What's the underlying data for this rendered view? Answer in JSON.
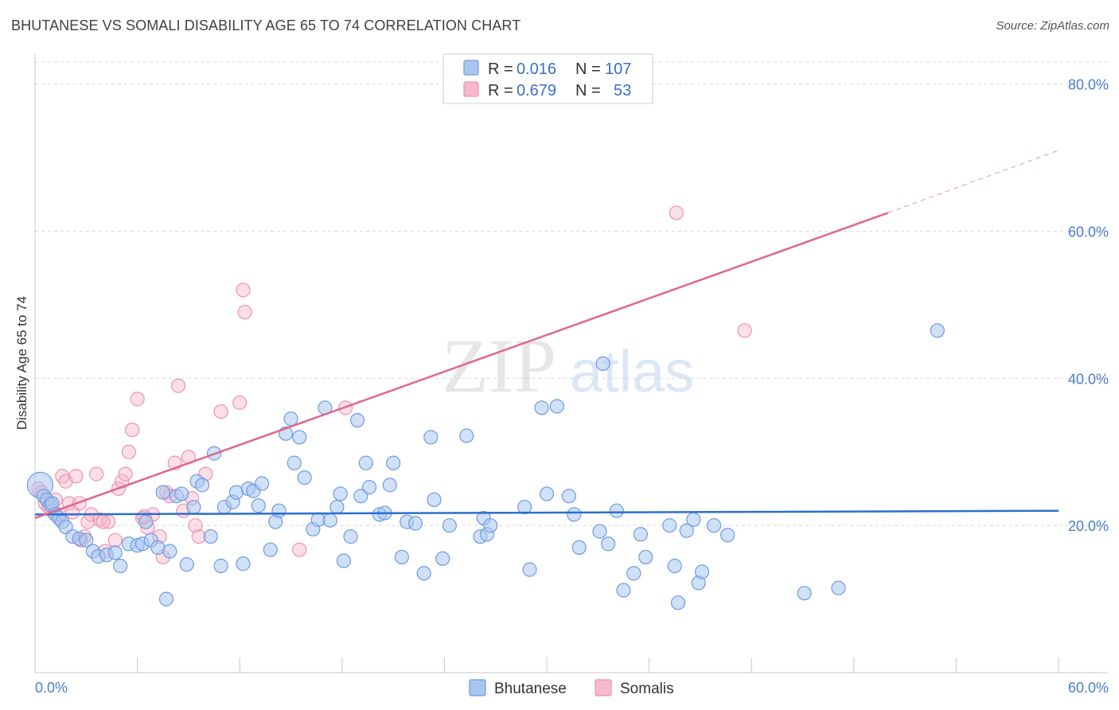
{
  "title": "BHUTANESE VS SOMALI DISABILITY AGE 65 TO 74 CORRELATION CHART",
  "source": "Source: ZipAtlas.com",
  "watermark": {
    "zip": "ZIP",
    "atlas": "atlas"
  },
  "colors": {
    "bhutanese_fill": "#a9c6f0",
    "bhutanese_stroke": "#6f9be0",
    "bhutanese_line": "#2a6fd0",
    "somalis_fill": "#f6b9cb",
    "somalis_stroke": "#ec93b0",
    "somalis_line": "#e0668f",
    "grid": "#d9d9d9",
    "tick_text": "#4a7dcc"
  },
  "legend": {
    "rows": [
      {
        "r_label": "R =",
        "r_value": "0.016",
        "n_label": "N =",
        "n_value": "107",
        "series": "Bhutanese"
      },
      {
        "r_label": "R =",
        "r_value": "0.679",
        "n_label": "N =",
        "n_value": "53",
        "series": "Somalis"
      }
    ]
  },
  "chart_data": {
    "type": "scatter",
    "title": "BHUTANESE VS SOMALI DISABILITY AGE 65 TO 74 CORRELATION CHART",
    "xlabel": "",
    "ylabel": "Disability Age 65 to 74",
    "xlim": [
      0,
      60
    ],
    "ylim": [
      0,
      83
    ],
    "x_tick_labels": [
      "0.0%",
      "60.0%"
    ],
    "y_ticks": [
      20,
      40,
      60,
      80
    ],
    "y_tick_labels": [
      "20.0%",
      "40.0%",
      "60.0%",
      "80.0%"
    ],
    "grid": true,
    "legend_position": "top-center",
    "series": [
      {
        "name": "Bhutanese",
        "r": 0.016,
        "n": 107,
        "trend": {
          "x": [
            0,
            60
          ],
          "y": [
            21.5,
            22.0
          ]
        },
        "points": [
          [
            0.3,
            25.5
          ],
          [
            0.5,
            24.0
          ],
          [
            0.7,
            23.5
          ],
          [
            0.9,
            22.8
          ],
          [
            1.0,
            23.0
          ],
          [
            1.2,
            21.5
          ],
          [
            1.4,
            21.0
          ],
          [
            1.6,
            20.5
          ],
          [
            1.8,
            19.8
          ],
          [
            2.2,
            18.5
          ],
          [
            2.6,
            18.2
          ],
          [
            3.0,
            18.0
          ],
          [
            3.4,
            16.5
          ],
          [
            3.7,
            15.8
          ],
          [
            4.2,
            16.0
          ],
          [
            4.7,
            16.3
          ],
          [
            5.0,
            14.5
          ],
          [
            5.5,
            17.5
          ],
          [
            6.0,
            17.3
          ],
          [
            6.3,
            17.5
          ],
          [
            6.5,
            20.5
          ],
          [
            6.8,
            18.0
          ],
          [
            7.2,
            17.0
          ],
          [
            7.5,
            24.5
          ],
          [
            7.7,
            10.0
          ],
          [
            7.9,
            16.5
          ],
          [
            8.3,
            24.0
          ],
          [
            8.6,
            24.3
          ],
          [
            8.9,
            14.7
          ],
          [
            9.3,
            22.5
          ],
          [
            9.5,
            26.0
          ],
          [
            9.8,
            25.5
          ],
          [
            10.3,
            18.5
          ],
          [
            10.5,
            29.8
          ],
          [
            10.9,
            14.5
          ],
          [
            11.1,
            22.5
          ],
          [
            11.6,
            23.2
          ],
          [
            11.8,
            24.5
          ],
          [
            12.2,
            14.8
          ],
          [
            12.5,
            25.0
          ],
          [
            12.8,
            24.7
          ],
          [
            13.1,
            22.7
          ],
          [
            13.3,
            25.7
          ],
          [
            13.8,
            16.7
          ],
          [
            14.1,
            20.5
          ],
          [
            14.3,
            22.0
          ],
          [
            14.7,
            32.5
          ],
          [
            15.0,
            34.5
          ],
          [
            15.2,
            28.5
          ],
          [
            15.5,
            32.0
          ],
          [
            15.8,
            26.5
          ],
          [
            16.3,
            19.5
          ],
          [
            16.6,
            20.8
          ],
          [
            17.0,
            36.0
          ],
          [
            17.3,
            20.7
          ],
          [
            17.7,
            22.5
          ],
          [
            17.9,
            24.3
          ],
          [
            18.1,
            15.2
          ],
          [
            18.5,
            18.5
          ],
          [
            18.9,
            34.3
          ],
          [
            19.1,
            24.0
          ],
          [
            19.4,
            28.5
          ],
          [
            19.6,
            25.2
          ],
          [
            20.2,
            21.5
          ],
          [
            20.5,
            21.7
          ],
          [
            20.8,
            25.5
          ],
          [
            21.0,
            28.5
          ],
          [
            21.5,
            15.7
          ],
          [
            21.8,
            20.5
          ],
          [
            22.3,
            20.3
          ],
          [
            22.8,
            13.5
          ],
          [
            23.2,
            32.0
          ],
          [
            23.4,
            23.5
          ],
          [
            23.9,
            15.5
          ],
          [
            24.3,
            20.0
          ],
          [
            25.3,
            32.2
          ],
          [
            26.1,
            18.5
          ],
          [
            26.3,
            21.0
          ],
          [
            26.5,
            18.8
          ],
          [
            26.7,
            20.0
          ],
          [
            28.7,
            22.5
          ],
          [
            29.0,
            14.0
          ],
          [
            29.7,
            36.0
          ],
          [
            30.0,
            24.3
          ],
          [
            30.6,
            36.2
          ],
          [
            31.3,
            24.0
          ],
          [
            31.6,
            21.5
          ],
          [
            31.9,
            17.0
          ],
          [
            33.1,
            19.2
          ],
          [
            33.3,
            42.0
          ],
          [
            33.6,
            17.5
          ],
          [
            34.1,
            22.0
          ],
          [
            34.5,
            11.2
          ],
          [
            35.1,
            13.5
          ],
          [
            35.5,
            18.8
          ],
          [
            35.8,
            15.7
          ],
          [
            37.2,
            20.0
          ],
          [
            37.5,
            14.5
          ],
          [
            37.7,
            9.5
          ],
          [
            38.2,
            19.3
          ],
          [
            38.6,
            20.8
          ],
          [
            38.9,
            12.2
          ],
          [
            39.1,
            13.7
          ],
          [
            39.8,
            20.0
          ],
          [
            40.6,
            18.7
          ],
          [
            45.1,
            10.8
          ],
          [
            47.1,
            11.5
          ],
          [
            52.9,
            46.5
          ]
        ]
      },
      {
        "name": "Somalis",
        "r": 0.679,
        "n": 53,
        "trend": {
          "x": [
            0,
            50
          ],
          "y": [
            21.0,
            62.5
          ]
        },
        "trend_dashed": {
          "x": [
            50,
            60
          ],
          "y": [
            62.5,
            71.0
          ]
        },
        "points": [
          [
            0.2,
            25.0
          ],
          [
            0.4,
            24.5
          ],
          [
            0.6,
            23.0
          ],
          [
            0.8,
            22.5
          ],
          [
            1.0,
            22.0
          ],
          [
            1.2,
            23.5
          ],
          [
            1.4,
            21.5
          ],
          [
            1.6,
            26.7
          ],
          [
            1.8,
            26.0
          ],
          [
            2.0,
            23.0
          ],
          [
            2.2,
            21.8
          ],
          [
            2.4,
            26.7
          ],
          [
            2.6,
            23.0
          ],
          [
            2.9,
            18.5
          ],
          [
            3.1,
            20.5
          ],
          [
            3.3,
            21.5
          ],
          [
            3.6,
            27.0
          ],
          [
            3.8,
            20.8
          ],
          [
            4.1,
            16.5
          ],
          [
            4.3,
            20.5
          ],
          [
            4.7,
            18.0
          ],
          [
            4.9,
            25.0
          ],
          [
            5.1,
            26.0
          ],
          [
            5.3,
            27.0
          ],
          [
            5.5,
            30.0
          ],
          [
            5.7,
            33.0
          ],
          [
            6.0,
            37.2
          ],
          [
            6.3,
            21.0
          ],
          [
            6.6,
            19.7
          ],
          [
            6.9,
            21.5
          ],
          [
            7.3,
            18.5
          ],
          [
            7.5,
            15.7
          ],
          [
            7.7,
            24.5
          ],
          [
            7.9,
            24.0
          ],
          [
            8.2,
            28.5
          ],
          [
            8.4,
            39.0
          ],
          [
            8.7,
            22.0
          ],
          [
            9.0,
            29.3
          ],
          [
            9.2,
            23.7
          ],
          [
            9.4,
            20.0
          ],
          [
            9.6,
            18.5
          ],
          [
            10.0,
            27.0
          ],
          [
            10.9,
            35.5
          ],
          [
            12.0,
            36.7
          ],
          [
            12.2,
            52.0
          ],
          [
            12.3,
            49.0
          ],
          [
            15.5,
            16.7
          ],
          [
            18.2,
            36.0
          ],
          [
            37.6,
            62.5
          ],
          [
            41.6,
            46.5
          ],
          [
            4.0,
            20.5
          ],
          [
            2.7,
            18.0
          ],
          [
            6.4,
            21.2
          ]
        ]
      }
    ]
  }
}
